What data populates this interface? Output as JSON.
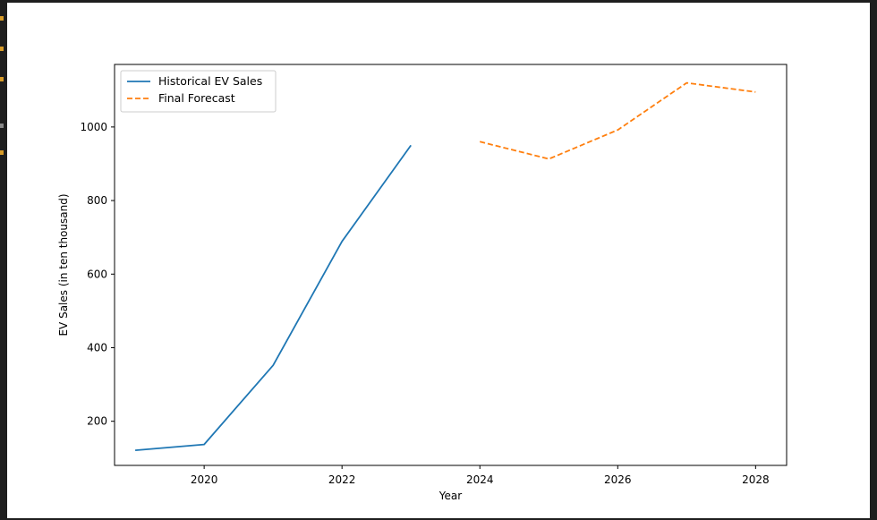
{
  "colors": {
    "background": "#ffffff",
    "historical": "#1f77b4",
    "forecast": "#ff7f0e",
    "sidebar_marks": "#d79b28"
  },
  "chart_data": {
    "type": "line",
    "title": "",
    "xlabel": "Year",
    "ylabel": "EV Sales (in ten thousand)",
    "xlim": [
      2018.7,
      2028.45
    ],
    "ylim": [
      80,
      1170
    ],
    "xticks": [
      2020,
      2022,
      2024,
      2026,
      2028
    ],
    "yticks": [
      200,
      400,
      600,
      800,
      1000
    ],
    "grid": false,
    "legend_position": "upper-left",
    "series": [
      {
        "name": "Historical EV Sales",
        "style": "solid",
        "color": "#1f77b4",
        "x": [
          2019,
          2020,
          2021,
          2022,
          2023
        ],
        "y": [
          121,
          137,
          352,
          689,
          950
        ]
      },
      {
        "name": "Final Forecast",
        "style": "dashed",
        "color": "#ff7f0e",
        "x": [
          2024,
          2025,
          2026,
          2027,
          2028
        ],
        "y": [
          960,
          913,
          992,
          1120,
          1095
        ]
      }
    ]
  }
}
